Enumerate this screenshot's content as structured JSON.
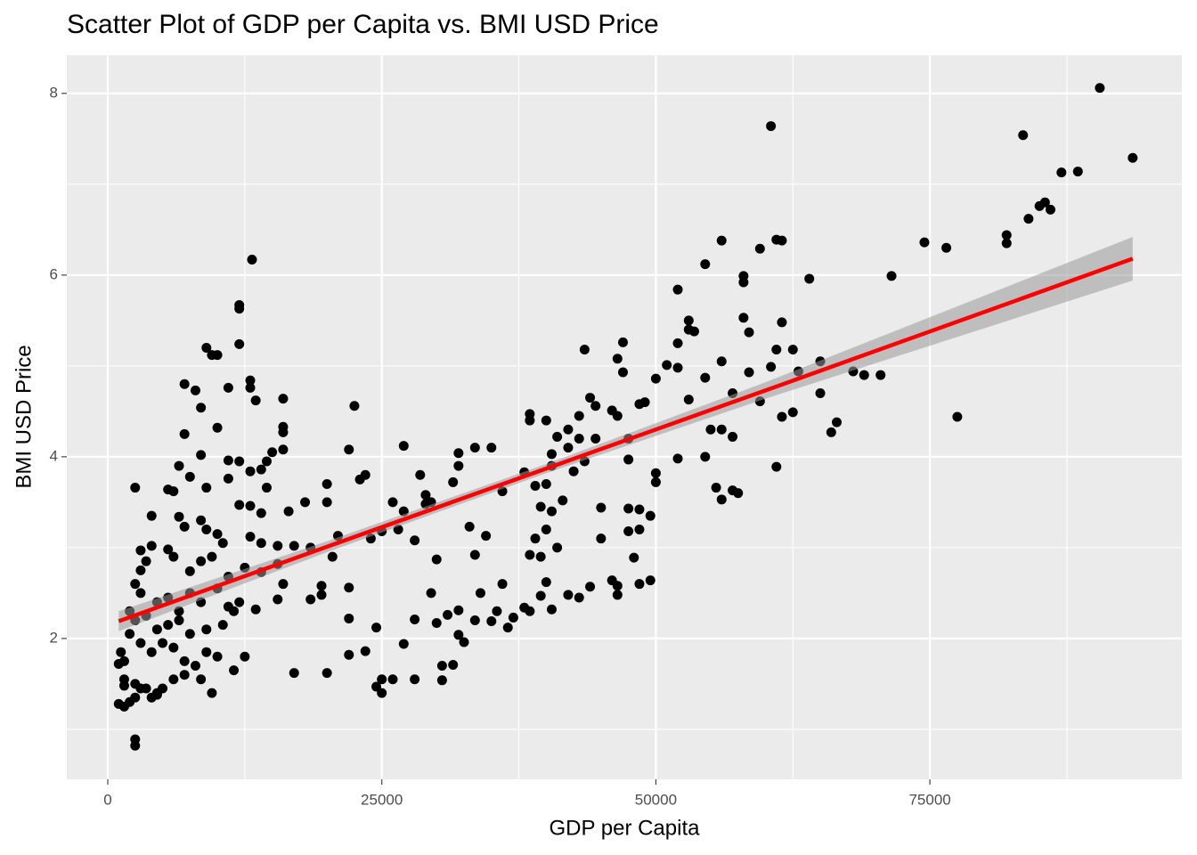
{
  "chart_data": {
    "type": "scatter",
    "title": "Scatter Plot of GDP per Capita vs. BMI USD Price",
    "x_label": "GDP per Capita",
    "y_label": "BMI USD Price",
    "color": "#000000",
    "xlim": [
      -3737,
      97985
    ],
    "ylim": [
      0.45,
      8.42
    ],
    "xticks": [
      0,
      25000,
      50000,
      75000
    ],
    "yticks": [
      2,
      4,
      6,
      8
    ],
    "minor_xticks": [
      12500,
      37500,
      62500,
      87500
    ],
    "minor_yticks": [
      1,
      3,
      5,
      7
    ],
    "grid": true,
    "x": [
      90500,
      60500,
      83500,
      93500,
      87000,
      88500,
      85500,
      85000,
      86000,
      84000,
      82000,
      82000,
      74500,
      76500,
      56000,
      61000,
      61500,
      59500,
      54500,
      71500,
      64000,
      58000,
      58000,
      52000,
      53000,
      53000,
      53500,
      58000,
      58500,
      61500,
      52000,
      47000,
      43500,
      61000,
      62500,
      46500,
      51000,
      52000,
      56000,
      60500,
      65000,
      68000,
      69000,
      70500,
      63000,
      47000,
      50000,
      54500,
      58500,
      57000,
      59500,
      61500,
      62500,
      65000,
      66500,
      66000,
      77500,
      48500,
      49000,
      44000,
      44500,
      46000,
      42000,
      43000,
      43000,
      40000,
      38500,
      38500,
      41000,
      44500,
      46500,
      47500,
      53000,
      55000,
      56000,
      57000,
      55500,
      56000,
      57000,
      57500,
      61000,
      54500,
      52000,
      50000,
      50000,
      47500,
      42000,
      40500,
      43500,
      40500,
      39000,
      40000,
      41500,
      40500,
      39500,
      40000,
      39000,
      41000,
      38500,
      39500,
      36000,
      38000,
      42500,
      45000,
      45000,
      47500,
      48500,
      47500,
      48500,
      49500,
      48000,
      49500,
      46500,
      46500,
      48500,
      46000,
      44000,
      43000,
      42000,
      40000,
      40500,
      39500,
      38000,
      38500,
      37000,
      35500,
      36500,
      35000,
      34000,
      36000,
      33500,
      32000,
      32500,
      32000,
      31000,
      30000,
      29500,
      31500,
      30500,
      30500,
      28000,
      28000,
      27000,
      26000,
      25000,
      25000,
      24500,
      23500,
      24500,
      22000,
      22000,
      20000,
      17000,
      22000,
      19500,
      19500,
      18500,
      20500,
      21000,
      18000,
      20000,
      20000,
      22000,
      23000,
      23500,
      22500,
      26000,
      26500,
      27000,
      28000,
      28500,
      29000,
      30000,
      31500,
      32000,
      32000,
      33500,
      34500,
      35000,
      33000,
      33500,
      29500,
      25000,
      24000,
      27000,
      29000,
      13160,
      12000,
      12000,
      9000,
      9500,
      10000,
      12000,
      7000,
      11000,
      13000,
      13000,
      8000,
      13500,
      16000,
      8500,
      16000,
      7000,
      16000,
      10000,
      16000,
      15000,
      14500,
      11000,
      12000,
      13000,
      14000,
      8500,
      6500,
      7500,
      9000,
      6000,
      2500,
      5500,
      11000,
      14500,
      12000,
      13000,
      14000,
      16500,
      4000,
      6500,
      7000,
      8500,
      10000,
      10500,
      9000,
      13000,
      14000,
      15500,
      17000,
      18500,
      4000,
      3000,
      3500,
      3000,
      5500,
      6000,
      7500,
      8500,
      9500,
      11000,
      12500,
      14000,
      15500,
      16000,
      2500,
      3000,
      4500,
      5500,
      6500,
      7500,
      8500,
      10000,
      11000,
      12000,
      13500,
      15500,
      2000,
      2500,
      3500,
      4500,
      5500,
      6500,
      7500,
      9000,
      10500,
      11500,
      2000,
      3000,
      4000,
      5000,
      6000,
      7000,
      8000,
      9000,
      10000,
      11500,
      12500,
      1000,
      1500,
      1500,
      2500,
      3500,
      4500,
      5000,
      6000,
      7000,
      8500,
      9500,
      1000,
      1500,
      2000,
      2500,
      3000,
      4000,
      4500,
      2500,
      2500,
      1200,
      1500
    ],
    "y": [
      8.06,
      7.64,
      7.54,
      7.29,
      7.13,
      7.14,
      6.8,
      6.76,
      6.72,
      6.62,
      6.44,
      6.35,
      6.36,
      6.3,
      6.38,
      6.39,
      6.38,
      6.29,
      6.12,
      5.99,
      5.96,
      5.99,
      5.92,
      5.84,
      5.5,
      5.4,
      5.38,
      5.53,
      5.37,
      5.48,
      5.25,
      5.26,
      5.18,
      5.18,
      5.18,
      5.08,
      5.01,
      4.98,
      5.05,
      4.99,
      5.05,
      4.94,
      4.9,
      4.9,
      4.94,
      4.93,
      4.86,
      4.87,
      4.93,
      4.7,
      4.61,
      4.44,
      4.49,
      4.7,
      4.38,
      4.27,
      4.44,
      4.58,
      4.6,
      4.65,
      4.56,
      4.51,
      4.3,
      4.45,
      4.2,
      4.4,
      4.47,
      4.4,
      4.22,
      4.2,
      4.45,
      4.2,
      4.63,
      4.3,
      4.3,
      4.22,
      3.66,
      3.53,
      3.63,
      3.6,
      3.89,
      4.0,
      3.98,
      3.72,
      3.82,
      3.97,
      4.1,
      4.03,
      3.95,
      3.9,
      3.68,
      3.7,
      3.52,
      3.4,
      3.45,
      3.2,
      3.1,
      3.0,
      2.92,
      2.9,
      3.62,
      3.83,
      3.84,
      3.44,
      3.1,
      3.43,
      3.2,
      3.18,
      3.42,
      3.35,
      2.89,
      2.64,
      2.58,
      2.48,
      2.6,
      2.64,
      2.57,
      2.45,
      2.48,
      2.62,
      2.32,
      2.47,
      2.34,
      2.3,
      2.23,
      2.3,
      2.12,
      2.19,
      2.5,
      2.6,
      2.2,
      2.31,
      1.96,
      2.04,
      2.26,
      2.17,
      2.5,
      1.71,
      1.54,
      1.7,
      1.55,
      2.21,
      1.94,
      1.55,
      1.55,
      1.4,
      1.47,
      1.86,
      2.12,
      1.82,
      2.22,
      1.62,
      1.62,
      2.56,
      2.58,
      2.48,
      2.43,
      2.9,
      3.13,
      3.5,
      3.5,
      3.7,
      4.08,
      3.75,
      3.8,
      4.56,
      3.5,
      3.2,
      4.12,
      3.08,
      3.8,
      3.58,
      2.87,
      3.72,
      3.9,
      4.04,
      4.1,
      3.13,
      4.1,
      3.23,
      2.92,
      3.5,
      3.18,
      3.1,
      3.4,
      3.48,
      6.17,
      5.67,
      5.63,
      5.2,
      5.12,
      5.12,
      5.24,
      4.8,
      4.76,
      4.84,
      4.76,
      4.73,
      4.62,
      4.64,
      4.54,
      4.33,
      4.25,
      4.27,
      4.32,
      4.08,
      4.05,
      3.95,
      3.96,
      3.95,
      3.84,
      3.86,
      4.02,
      3.9,
      3.78,
      3.66,
      3.62,
      3.66,
      3.64,
      3.76,
      3.66,
      3.47,
      3.46,
      3.38,
      3.4,
      3.35,
      3.34,
      3.23,
      3.3,
      3.15,
      3.05,
      3.2,
      3.12,
      3.05,
      3.02,
      3.02,
      3.0,
      3.02,
      2.97,
      2.85,
      2.75,
      2.98,
      2.9,
      2.74,
      2.85,
      2.9,
      2.68,
      2.78,
      2.73,
      2.82,
      2.6,
      2.6,
      2.5,
      2.4,
      2.45,
      2.3,
      2.5,
      2.4,
      2.55,
      2.35,
      2.4,
      2.32,
      2.43,
      2.3,
      2.2,
      2.25,
      2.1,
      2.15,
      2.2,
      2.05,
      2.1,
      2.15,
      2.3,
      2.05,
      1.95,
      1.85,
      1.95,
      1.9,
      1.75,
      1.7,
      1.85,
      1.8,
      1.65,
      1.8,
      1.72,
      1.75,
      1.55,
      1.5,
      1.45,
      1.4,
      1.45,
      1.55,
      1.6,
      1.55,
      1.4,
      1.28,
      1.25,
      1.3,
      1.35,
      1.45,
      1.35,
      1.38,
      0.82,
      0.89,
      1.85,
      1.48
    ],
    "fit": {
      "color": "#ff0000",
      "band_color": "#999999",
      "x": [
        1000,
        20000,
        40000,
        60000,
        93500
      ],
      "y": [
        2.19,
        3.01,
        3.87,
        4.73,
        6.18
      ],
      "lower": [
        2.08,
        2.95,
        3.82,
        4.64,
        5.94
      ],
      "upper": [
        2.3,
        3.07,
        3.92,
        4.82,
        6.42
      ]
    }
  }
}
